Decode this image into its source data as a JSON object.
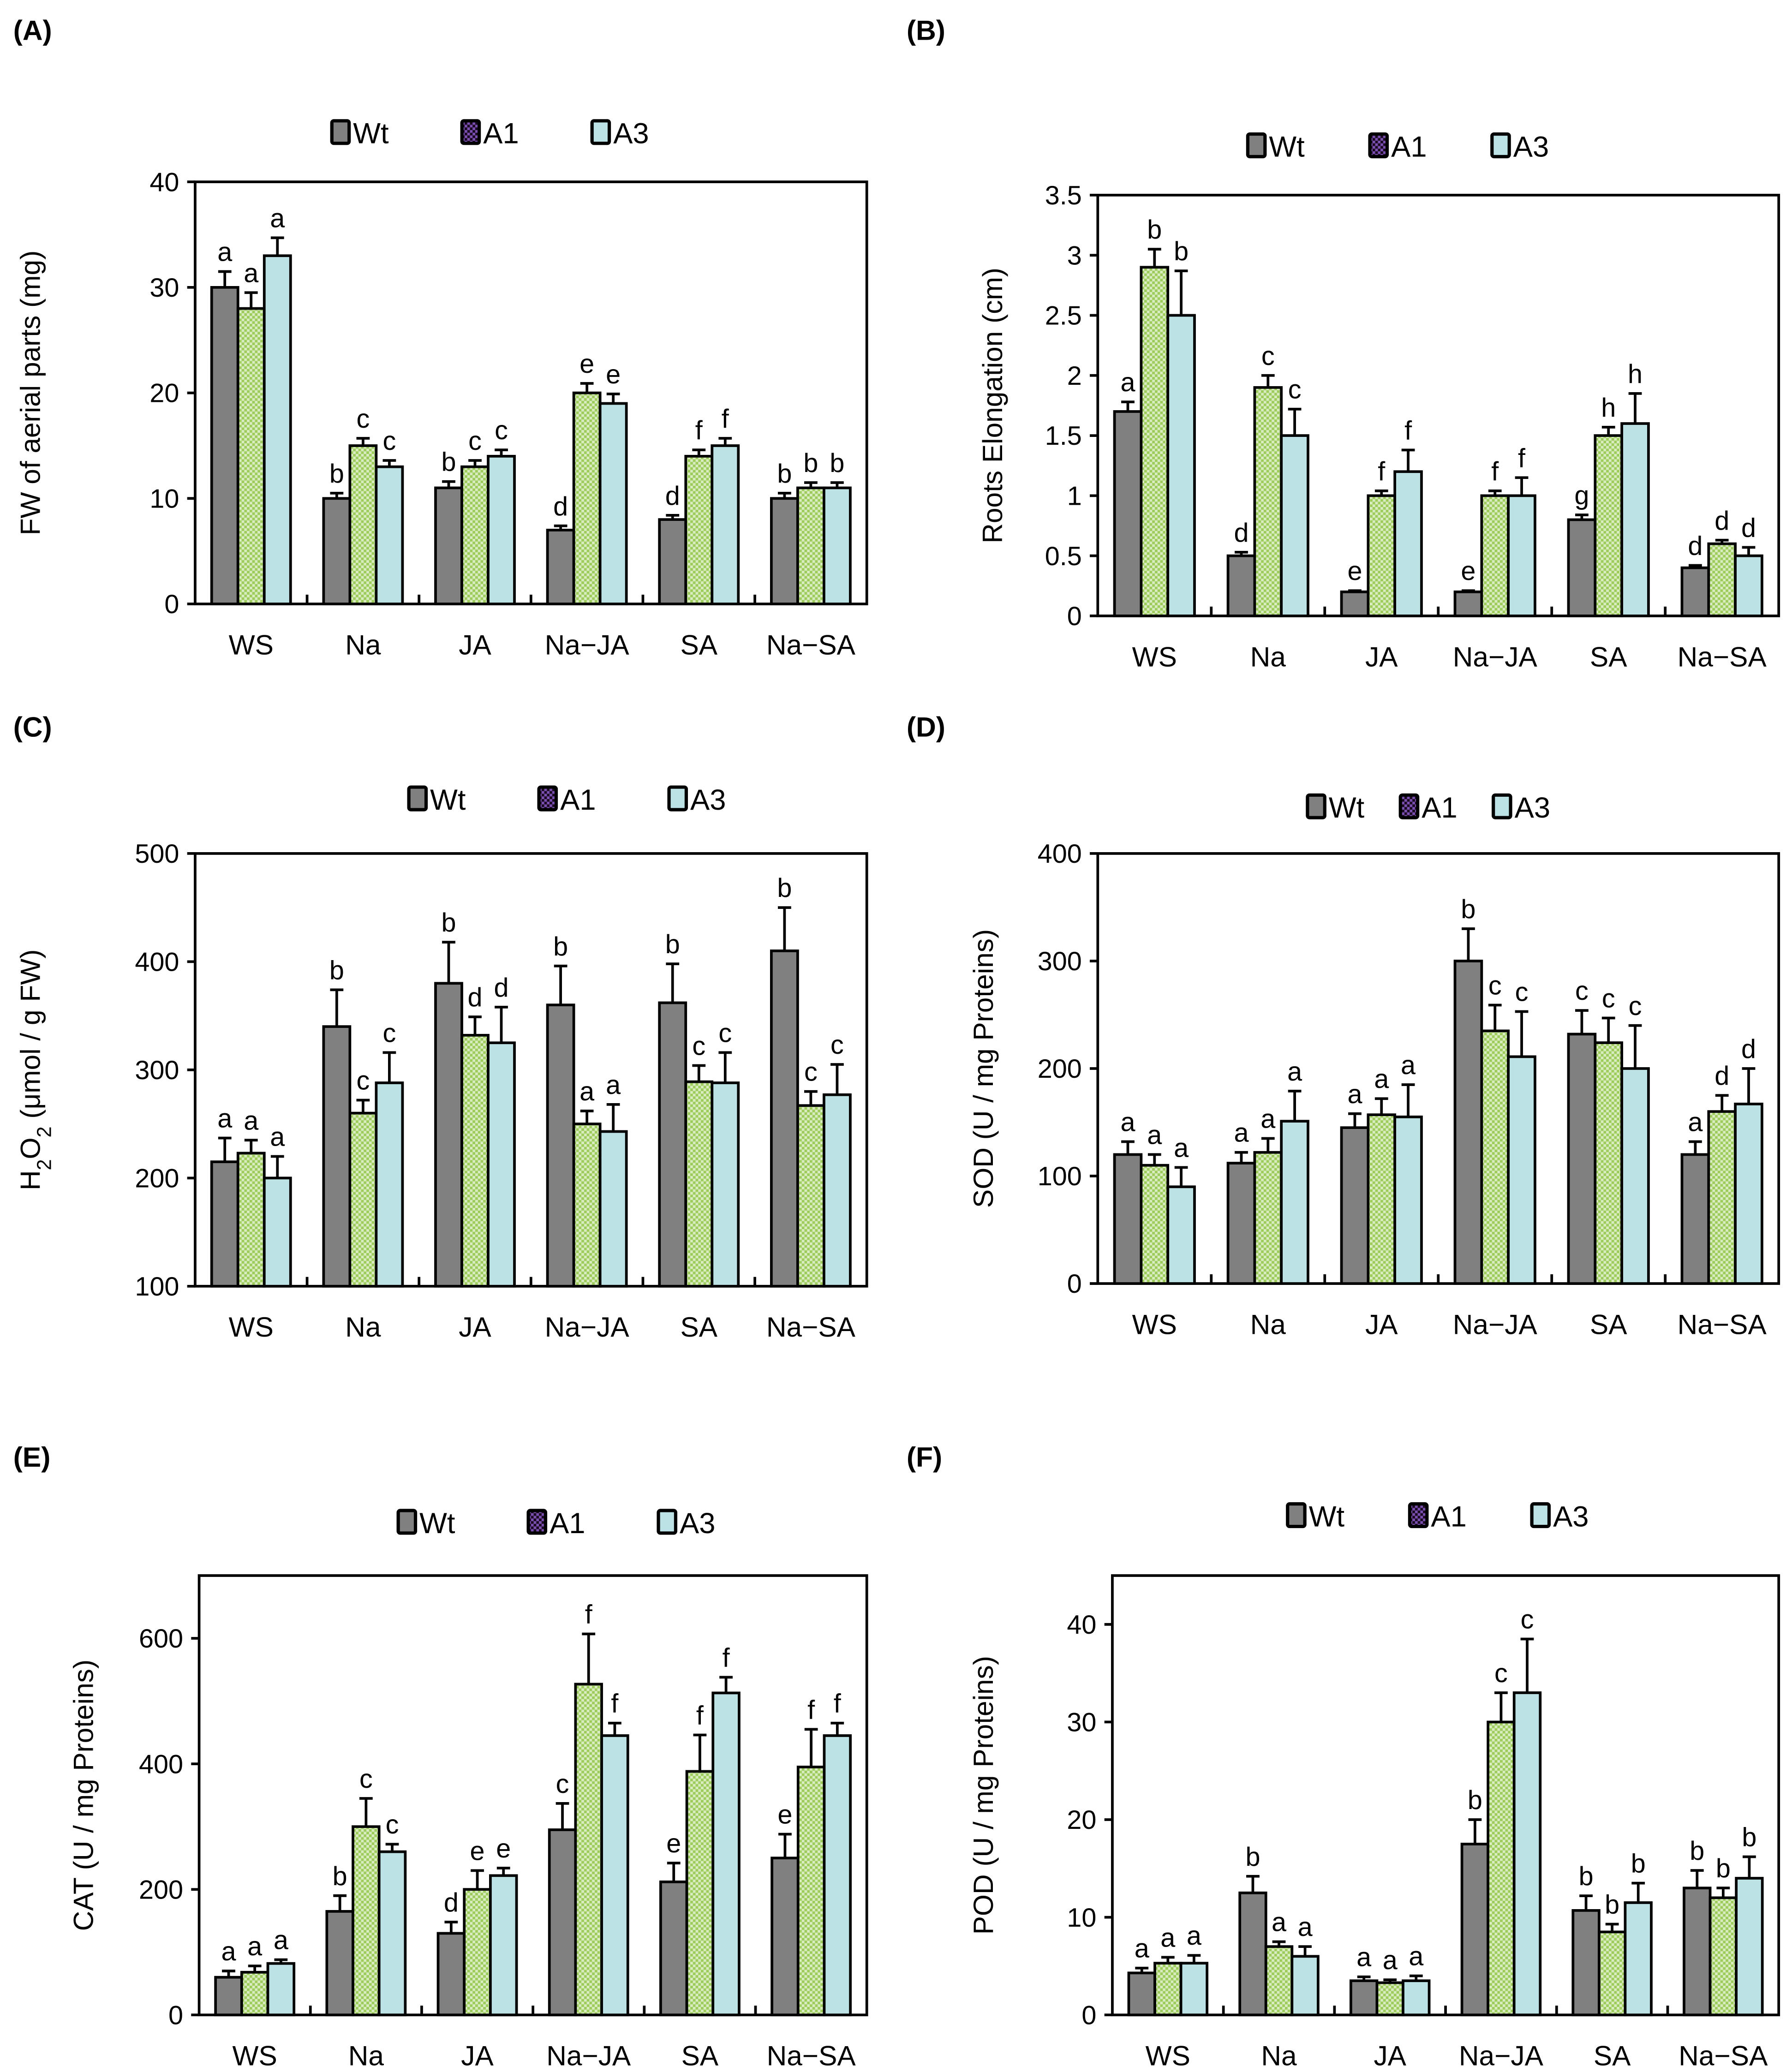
{
  "legend": [
    "Wt",
    "A1",
    "A3"
  ],
  "colors": {
    "Wt": "#808080",
    "A1": "#9dcc5c",
    "A1_legend": "#6a3d9a",
    "A3": "#bce2e6",
    "outline": "#000000"
  },
  "chart_data": [
    {
      "type": "bar",
      "panel": "(A)",
      "title": "",
      "xlabel": "",
      "ylabel": "FW of aerial parts (mg)",
      "ylim": [
        0,
        40
      ],
      "yticks": [
        0,
        10,
        20,
        30,
        40
      ],
      "grid": false,
      "legend_placement": "top-center",
      "categories": [
        "WS",
        "Na",
        "JA",
        "Na−JA",
        "SA",
        "Na−SA"
      ],
      "series": [
        {
          "name": "Wt",
          "values": [
            30,
            10,
            11,
            7,
            8,
            10
          ],
          "errors": [
            1.5,
            0.5,
            0.6,
            0.4,
            0.4,
            0.5
          ]
        },
        {
          "name": "A1",
          "values": [
            28,
            15,
            13,
            20,
            14,
            11
          ],
          "errors": [
            1.5,
            0.7,
            0.6,
            0.9,
            0.6,
            0.5
          ]
        },
        {
          "name": "A3",
          "values": [
            33,
            13,
            14,
            19,
            15,
            11
          ],
          "errors": [
            1.7,
            0.6,
            0.6,
            0.9,
            0.7,
            0.5
          ]
        }
      ],
      "letters": [
        [
          "a",
          "a",
          "a"
        ],
        [
          "b",
          "c",
          "c"
        ],
        [
          "b",
          "c",
          "c"
        ],
        [
          "d",
          "e",
          "e"
        ],
        [
          "d",
          "f",
          "f"
        ],
        [
          "b",
          "b",
          "b"
        ]
      ]
    },
    {
      "type": "bar",
      "panel": "(B)",
      "title": "",
      "xlabel": "",
      "ylabel": "Roots Elongation (cm)",
      "ylim": [
        0,
        3.5
      ],
      "yticks": [
        0,
        0.5,
        1,
        1.5,
        2,
        2.5,
        3,
        3.5
      ],
      "grid": false,
      "legend_placement": "top-center",
      "categories": [
        "WS",
        "Na",
        "JA",
        "Na−JA",
        "SA",
        "Na−SA"
      ],
      "series": [
        {
          "name": "Wt",
          "values": [
            1.7,
            0.5,
            0.2,
            0.2,
            0.8,
            0.4
          ],
          "errors": [
            0.08,
            0.03,
            0.01,
            0.01,
            0.04,
            0.02
          ]
        },
        {
          "name": "A1",
          "values": [
            2.9,
            1.9,
            1.0,
            1.0,
            1.5,
            0.6
          ],
          "errors": [
            0.15,
            0.1,
            0.04,
            0.04,
            0.07,
            0.03
          ]
        },
        {
          "name": "A3",
          "values": [
            2.5,
            1.5,
            1.2,
            1.0,
            1.6,
            0.5
          ],
          "errors": [
            0.37,
            0.22,
            0.18,
            0.15,
            0.25,
            0.07
          ]
        }
      ],
      "letters": [
        [
          "a",
          "b",
          "b"
        ],
        [
          "d",
          "c",
          "c"
        ],
        [
          "e",
          "f",
          "f"
        ],
        [
          "e",
          "f",
          "f"
        ],
        [
          "g",
          "h",
          "h"
        ],
        [
          "d",
          "d",
          "d"
        ]
      ]
    },
    {
      "type": "bar",
      "panel": "(C)",
      "title": "",
      "xlabel": "",
      "ylabel": "H2O2 (μmol / g FW)",
      "ylim": [
        100,
        500
      ],
      "yticks": [
        100,
        200,
        300,
        400,
        500
      ],
      "grid": false,
      "legend_placement": "top-center",
      "categories": [
        "WS",
        "Na",
        "JA",
        "Na−JA",
        "SA",
        "Na−SA"
      ],
      "series": [
        {
          "name": "Wt",
          "values": [
            215,
            340,
            380,
            360,
            362,
            410
          ],
          "errors": [
            22,
            34,
            38,
            36,
            36,
            40
          ]
        },
        {
          "name": "A1",
          "values": [
            223,
            260,
            332,
            250,
            289,
            267
          ],
          "errors": [
            12,
            12,
            17,
            12,
            15,
            13
          ]
        },
        {
          "name": "A3",
          "values": [
            200,
            288,
            325,
            243,
            288,
            277
          ],
          "errors": [
            20,
            28,
            33,
            25,
            28,
            28
          ]
        }
      ],
      "letters": [
        [
          "a",
          "a",
          "a"
        ],
        [
          "b",
          "c",
          "c"
        ],
        [
          "b",
          "d",
          "d"
        ],
        [
          "b",
          "a",
          "a"
        ],
        [
          "b",
          "c",
          "c"
        ],
        [
          "b",
          "c",
          "c"
        ]
      ]
    },
    {
      "type": "bar",
      "panel": "(D)",
      "title": "",
      "xlabel": "",
      "ylabel": "SOD (U / mg Proteins)",
      "ylim": [
        0,
        400
      ],
      "yticks": [
        0,
        100,
        200,
        300,
        400
      ],
      "grid": false,
      "legend_placement": "top-center",
      "categories": [
        "WS",
        "Na",
        "JA",
        "Na−JA",
        "SA",
        "Na−SA"
      ],
      "series": [
        {
          "name": "Wt",
          "values": [
            120,
            112,
            145,
            300,
            232,
            120
          ],
          "errors": [
            12,
            10,
            13,
            30,
            22,
            12
          ]
        },
        {
          "name": "A1",
          "values": [
            110,
            122,
            157,
            235,
            224,
            160
          ],
          "errors": [
            10,
            13,
            15,
            24,
            23,
            15
          ]
        },
        {
          "name": "A3",
          "values": [
            90,
            151,
            155,
            211,
            200,
            167
          ],
          "errors": [
            18,
            28,
            30,
            42,
            40,
            33
          ]
        }
      ],
      "letters": [
        [
          "a",
          "a",
          "a"
        ],
        [
          "a",
          "a",
          "a"
        ],
        [
          "a",
          "a",
          "a"
        ],
        [
          "b",
          "c",
          "c"
        ],
        [
          "c",
          "c",
          "c"
        ],
        [
          "a",
          "d",
          "d"
        ]
      ]
    },
    {
      "type": "bar",
      "panel": "(E)",
      "title": "",
      "xlabel": "",
      "ylabel": "CAT (U / mg Proteins)",
      "ylim": [
        0,
        700
      ],
      "yticks": [
        0,
        200,
        400,
        600
      ],
      "grid": false,
      "legend_placement": "top-center",
      "categories": [
        "WS",
        "Na",
        "JA",
        "Na−JA",
        "SA",
        "Na−SA"
      ],
      "series": [
        {
          "name": "Wt",
          "values": [
            60,
            165,
            130,
            295,
            212,
            250
          ],
          "errors": [
            10,
            25,
            18,
            42,
            30,
            38
          ]
        },
        {
          "name": "A1",
          "values": [
            68,
            300,
            200,
            527,
            388,
            395
          ],
          "errors": [
            10,
            45,
            30,
            80,
            58,
            60
          ]
        },
        {
          "name": "A3",
          "values": [
            82,
            260,
            222,
            445,
            513,
            445
          ],
          "errors": [
            6,
            12,
            12,
            20,
            25,
            20
          ]
        }
      ],
      "letters": [
        [
          "a",
          "a",
          "a"
        ],
        [
          "b",
          "c",
          "c"
        ],
        [
          "d",
          "e",
          "e"
        ],
        [
          "c",
          "f",
          "f"
        ],
        [
          "e",
          "f",
          "f"
        ],
        [
          "e",
          "f",
          "f"
        ]
      ]
    },
    {
      "type": "bar",
      "panel": "(F)",
      "title": "",
      "xlabel": "",
      "ylabel": "POD (U / mg Proteins)",
      "ylim": [
        0,
        45
      ],
      "yticks": [
        0,
        10,
        20,
        30,
        40
      ],
      "grid": false,
      "legend_placement": "top-center",
      "categories": [
        "WS",
        "Na",
        "JA",
        "Na−JA",
        "SA",
        "Na−SA"
      ],
      "series": [
        {
          "name": "Wt",
          "values": [
            4.3,
            12.5,
            3.5,
            17.5,
            10.7,
            13
          ],
          "errors": [
            0.5,
            1.7,
            0.4,
            2.5,
            1.5,
            1.8
          ]
        },
        {
          "name": "A1",
          "values": [
            5.3,
            7,
            3.3,
            30,
            8.5,
            12
          ],
          "errors": [
            0.6,
            0.5,
            0.3,
            3,
            0.8,
            1
          ]
        },
        {
          "name": "A3",
          "values": [
            5.3,
            6,
            3.5,
            33,
            11.5,
            14
          ],
          "errors": [
            0.8,
            1,
            0.5,
            5.5,
            2,
            2.2
          ]
        }
      ],
      "letters": [
        [
          "a",
          "a",
          "a"
        ],
        [
          "b",
          "a",
          "a"
        ],
        [
          "a",
          "a",
          "a"
        ],
        [
          "b",
          "c",
          "c"
        ],
        [
          "b",
          "b",
          "b"
        ],
        [
          "b",
          "b",
          "b"
        ]
      ]
    }
  ]
}
